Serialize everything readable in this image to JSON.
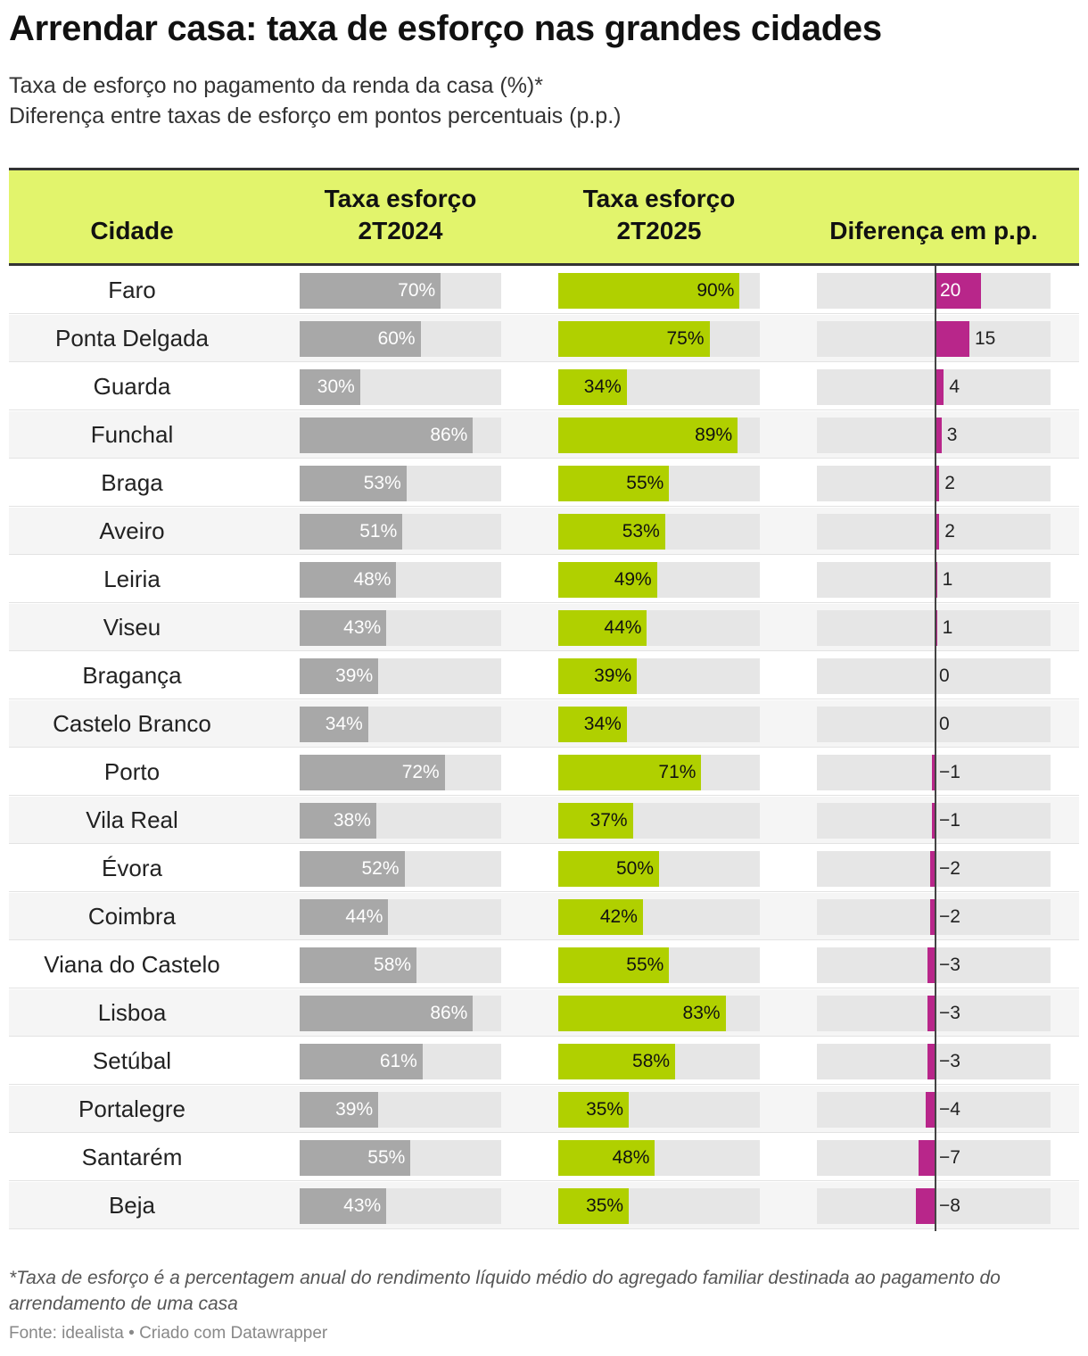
{
  "title": "Arrendar casa: taxa de esforço nas grandes cidades",
  "subtitle_line1": "Taxa de esforço no pagamento da renda da casa (%)*",
  "subtitle_line2": "Diferença entre taxas de esforço em pontos percentuais (p.p.)",
  "headers": {
    "city": "Cidade",
    "rate_2024_line1": "Taxa esforço",
    "rate_2024_line2": "2T2024",
    "rate_2025_line1": "Taxa esforço",
    "rate_2025_line2": "2T2025",
    "diff": "Diferença em p.p."
  },
  "footnote": "*Taxa de esforço é a percentagem anual do rendimento líquido médio do agregado familiar destinada ao pagamento do arrendamento de uma casa",
  "source": "Fonte: idealista • Criado com Datawrapper",
  "colors": {
    "header_bg": "#e2f46c",
    "bar_2024": "#a8a8a8",
    "bar_2025": "#b0d000",
    "bar_diff": "#b8268a",
    "track": "#e6e6e6"
  },
  "chart_data": {
    "type": "table",
    "title": "Arrendar casa: taxa de esforço nas grandes cidades",
    "columns": [
      "Cidade",
      "Taxa esforço 2T2024",
      "Taxa esforço 2T2025",
      "Diferença em p.p."
    ],
    "percent_range": [
      0,
      100
    ],
    "diff_range": [
      -15,
      20
    ],
    "rows": [
      {
        "city": "Faro",
        "r2024": 70,
        "r2025": 90,
        "diff": 20,
        "l2024": "70%",
        "l2025": "90%",
        "ldiff": "20"
      },
      {
        "city": "Ponta Delgada",
        "r2024": 60,
        "r2025": 75,
        "diff": 15,
        "l2024": "60%",
        "l2025": "75%",
        "ldiff": "15"
      },
      {
        "city": "Guarda",
        "r2024": 30,
        "r2025": 34,
        "diff": 4,
        "l2024": "30%",
        "l2025": "34%",
        "ldiff": "4"
      },
      {
        "city": "Funchal",
        "r2024": 86,
        "r2025": 89,
        "diff": 3,
        "l2024": "86%",
        "l2025": "89%",
        "ldiff": "3"
      },
      {
        "city": "Braga",
        "r2024": 53,
        "r2025": 55,
        "diff": 2,
        "l2024": "53%",
        "l2025": "55%",
        "ldiff": "2"
      },
      {
        "city": "Aveiro",
        "r2024": 51,
        "r2025": 53,
        "diff": 2,
        "l2024": "51%",
        "l2025": "53%",
        "ldiff": "2"
      },
      {
        "city": "Leiria",
        "r2024": 48,
        "r2025": 49,
        "diff": 1,
        "l2024": "48%",
        "l2025": "49%",
        "ldiff": "1"
      },
      {
        "city": "Viseu",
        "r2024": 43,
        "r2025": 44,
        "diff": 1,
        "l2024": "43%",
        "l2025": "44%",
        "ldiff": "1"
      },
      {
        "city": "Bragança",
        "r2024": 39,
        "r2025": 39,
        "diff": 0,
        "l2024": "39%",
        "l2025": "39%",
        "ldiff": "0"
      },
      {
        "city": "Castelo Branco",
        "r2024": 34,
        "r2025": 34,
        "diff": 0,
        "l2024": "34%",
        "l2025": "34%",
        "ldiff": "0"
      },
      {
        "city": "Porto",
        "r2024": 72,
        "r2025": 71,
        "diff": -1,
        "l2024": "72%",
        "l2025": "71%",
        "ldiff": "−1"
      },
      {
        "city": "Vila Real",
        "r2024": 38,
        "r2025": 37,
        "diff": -1,
        "l2024": "38%",
        "l2025": "37%",
        "ldiff": "−1"
      },
      {
        "city": "Évora",
        "r2024": 52,
        "r2025": 50,
        "diff": -2,
        "l2024": "52%",
        "l2025": "50%",
        "ldiff": "−2"
      },
      {
        "city": "Coimbra",
        "r2024": 44,
        "r2025": 42,
        "diff": -2,
        "l2024": "44%",
        "l2025": "42%",
        "ldiff": "−2"
      },
      {
        "city": "Viana do Castelo",
        "r2024": 58,
        "r2025": 55,
        "diff": -3,
        "l2024": "58%",
        "l2025": "55%",
        "ldiff": "−3"
      },
      {
        "city": "Lisboa",
        "r2024": 86,
        "r2025": 83,
        "diff": -3,
        "l2024": "86%",
        "l2025": "83%",
        "ldiff": "−3"
      },
      {
        "city": "Setúbal",
        "r2024": 61,
        "r2025": 58,
        "diff": -3,
        "l2024": "61%",
        "l2025": "58%",
        "ldiff": "−3"
      },
      {
        "city": "Portalegre",
        "r2024": 39,
        "r2025": 35,
        "diff": -4,
        "l2024": "39%",
        "l2025": "35%",
        "ldiff": "−4"
      },
      {
        "city": "Santarém",
        "r2024": 55,
        "r2025": 48,
        "diff": -7,
        "l2024": "55%",
        "l2025": "48%",
        "ldiff": "−7"
      },
      {
        "city": "Beja",
        "r2024": 43,
        "r2025": 35,
        "diff": -8,
        "l2024": "43%",
        "l2025": "35%",
        "ldiff": "−8"
      }
    ]
  }
}
